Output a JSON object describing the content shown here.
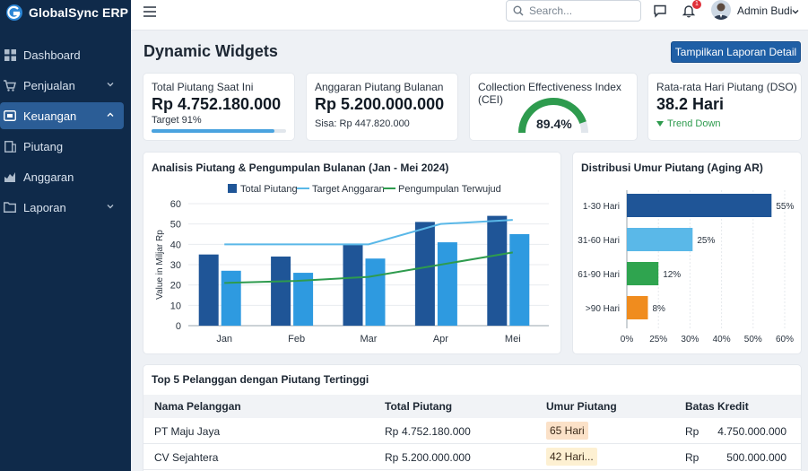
{
  "app": {
    "name": "GlobalSync ERP"
  },
  "sidebar": {
    "items": [
      {
        "label": "Dashboard",
        "icon": "grid-icon",
        "active": false,
        "expandable": false
      },
      {
        "label": "Penjualan",
        "icon": "cart-icon",
        "active": false,
        "expandable": true
      },
      {
        "label": "Keuangan",
        "icon": "wallet-icon",
        "active": true,
        "expandable": true
      },
      {
        "label": "Piutang",
        "icon": "receivable-icon",
        "active": false,
        "expandable": false
      },
      {
        "label": "Anggaran",
        "icon": "budget-icon",
        "active": false,
        "expandable": false
      },
      {
        "label": "Laporan",
        "icon": "folder-icon",
        "active": false,
        "expandable": true
      }
    ]
  },
  "topbar": {
    "search_placeholder": "Search...",
    "notification_count": "1",
    "user_name": "Admin Budi"
  },
  "page": {
    "title": "Dynamic Widgets",
    "report_button": "Tampilkan Laporan Detail"
  },
  "kpis": {
    "total": {
      "title": "Total Piutang Saat Ini",
      "value": "Rp 4.752.180.000",
      "sub": "Target 91%",
      "progress": 0.91
    },
    "budget": {
      "title": "Anggaran Piutang Bulanan",
      "value": "Rp 5.200.000.000",
      "sub": "Sisa: Rp 447.820.000"
    },
    "cei": {
      "title": "Collection Effectiveness Index (CEI)",
      "value": "89.4%",
      "fraction": 0.894
    },
    "dso": {
      "title": "Rata-rata Hari Piutang (DSO)",
      "value": "38.2 Hari",
      "trend": "Trend Down"
    }
  },
  "colors": {
    "sidebar": "#0f2a4a",
    "active": "#2b5d96",
    "bar_dark": "#1f5597",
    "bar_light": "#2e9ae0",
    "target_line": "#5ab8e8",
    "realized_line": "#2e9b4e",
    "aging": [
      "#1f5597",
      "#5ab8e8",
      "#2fa44f",
      "#f08c1e"
    ]
  },
  "chart_data": [
    {
      "type": "bar",
      "title": "Analisis Piutang & Pengumpulan Bulanan (Jan - Mei 2024)",
      "categories": [
        "Jan",
        "Feb",
        "Mar",
        "Apr",
        "Mei"
      ],
      "ylabel": "Value in Miljar Rp",
      "ylim": [
        0,
        60
      ],
      "yticks": [
        "0",
        "10",
        "20",
        "30",
        "40",
        "50",
        "60"
      ],
      "legend": "top",
      "series": [
        {
          "name": "Total Piutang",
          "kind": "bar",
          "values": [
            35,
            34,
            40,
            51,
            54
          ]
        },
        {
          "name": "",
          "kind": "bar",
          "values": [
            27,
            26,
            33,
            41,
            45
          ]
        },
        {
          "name": "Target Anggaran",
          "kind": "line",
          "values": [
            40,
            40,
            40,
            50,
            52
          ]
        },
        {
          "name": "Pengumpulan Terwujud",
          "kind": "line",
          "values": [
            21,
            22,
            24,
            30,
            36
          ]
        }
      ]
    },
    {
      "type": "bar",
      "orientation": "horizontal",
      "title": "Distribusi Umur Piutang (Aging AR)",
      "categories": [
        "1-30 Hari",
        "31-60 Hari",
        "61-90 Hari",
        ">90 Hari"
      ],
      "values": [
        55,
        25,
        12,
        8
      ],
      "value_labels": [
        "55%",
        "25%",
        "12%",
        "8%"
      ],
      "xlim": [
        0,
        60
      ],
      "xticks": [
        "0%",
        "25%",
        "30%",
        "40%",
        "50%",
        "60%"
      ]
    }
  ],
  "table": {
    "title": "Top 5 Pelanggan dengan Piutang Tertinggi",
    "columns": [
      "Nama Pelanggan",
      "Total Piutang",
      "Umur Piutang",
      "Batas Kredit"
    ],
    "rows": [
      {
        "name": "PT Maju Jaya",
        "cur": "Rp",
        "total": "4.752.180.000",
        "age": "65 Hari",
        "age_color": "#fbe1c8",
        "limit_cur": "Rp",
        "limit": "4.750.000.000"
      },
      {
        "name": "CV Sejahtera",
        "cur": "Rp",
        "total": "5.200.000.000",
        "age": "42 Hari...",
        "age_color": "#fdf0d2",
        "limit_cur": "Rp",
        "limit": "500.000.000"
      }
    ]
  }
}
